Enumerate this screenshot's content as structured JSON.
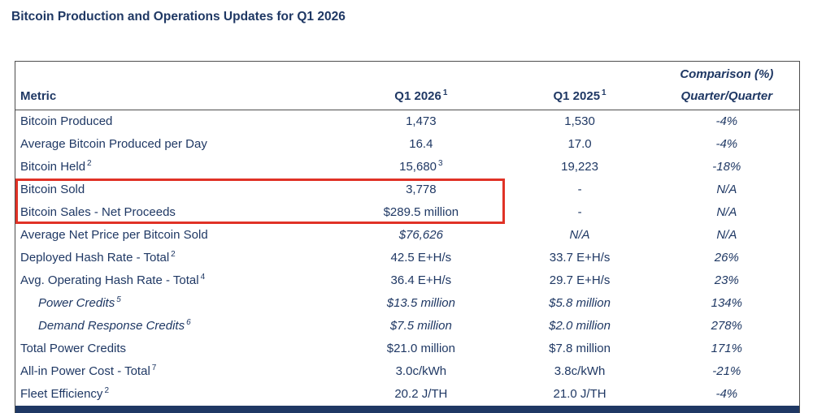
{
  "page": {
    "title": "Bitcoin Production and Operations Updates for Q1 2026"
  },
  "colors": {
    "text": "#1f3864",
    "bottom_bar": "#1f3864",
    "table_border": "#4d4d4d",
    "highlight_box": "#e03226"
  },
  "table": {
    "headers": {
      "metric": "Metric",
      "q1_2026": "Q1 2026",
      "q1_2026_sup": "1",
      "q1_2025": "Q1 2025",
      "q1_2025_sup": "1",
      "comparison_line1": "Comparison (%)",
      "comparison_line2": "Quarter/Quarter"
    },
    "rows": [
      {
        "metric": "Bitcoin Produced",
        "q1_2026": "1,473",
        "q1_2025": "1,530",
        "comparison": "-4%"
      },
      {
        "metric": "Average Bitcoin Produced per Day",
        "q1_2026": "16.4",
        "q1_2025": "17.0",
        "comparison": "-4%"
      },
      {
        "metric": "Bitcoin Held",
        "metric_sup": "2",
        "q1_2026": "15,680",
        "q1_2026_sup": "3",
        "q1_2025": "19,223",
        "comparison": "-18%"
      },
      {
        "metric": "Bitcoin Sold",
        "q1_2026": "3,778",
        "q1_2025": "-",
        "comparison": "N/A"
      },
      {
        "metric": "Bitcoin Sales - Net Proceeds",
        "q1_2026": "$289.5 million",
        "q1_2025": "-",
        "comparison": "N/A"
      },
      {
        "metric": "Average Net Price per Bitcoin Sold",
        "q1_2026": "$76,626",
        "q1_2025": "N/A",
        "comparison": "N/A",
        "values_italic": true
      },
      {
        "metric": "Deployed Hash Rate - Total",
        "metric_sup": "2",
        "q1_2026": "42.5 E+H/s",
        "q1_2025": "33.7 E+H/s",
        "comparison": "26%"
      },
      {
        "metric": "Avg. Operating Hash Rate - Total",
        "metric_sup": "4",
        "q1_2026": "36.4 E+H/s",
        "q1_2025": "29.7 E+H/s",
        "comparison": "23%"
      },
      {
        "metric": "Power Credits",
        "metric_sup": "5",
        "indent": true,
        "metric_italic": true,
        "values_italic": true,
        "q1_2026": "$13.5 million",
        "q1_2025": "$5.8 million",
        "comparison": "134%"
      },
      {
        "metric": "Demand Response Credits",
        "metric_sup": "6",
        "indent": true,
        "metric_italic": true,
        "values_italic": true,
        "q1_2026": "$7.5 million",
        "q1_2025": "$2.0 million",
        "comparison": "278%"
      },
      {
        "metric": "Total Power Credits",
        "q1_2026": "$21.0 million",
        "q1_2025": "$7.8 million",
        "comparison": "171%"
      },
      {
        "metric": "All-in Power Cost - Total",
        "metric_sup": "7",
        "q1_2026": "3.0c/kWh",
        "q1_2025": "3.8c/kWh",
        "comparison": "-21%"
      },
      {
        "metric": "Fleet Efficiency",
        "metric_sup": "2",
        "q1_2026": "20.2 J/TH",
        "q1_2025": "21.0 J/TH",
        "comparison": "-4%"
      }
    ],
    "highlight": {
      "rows": [
        3,
        4
      ],
      "columns": [
        0,
        1
      ],
      "thickness": 3
    }
  }
}
